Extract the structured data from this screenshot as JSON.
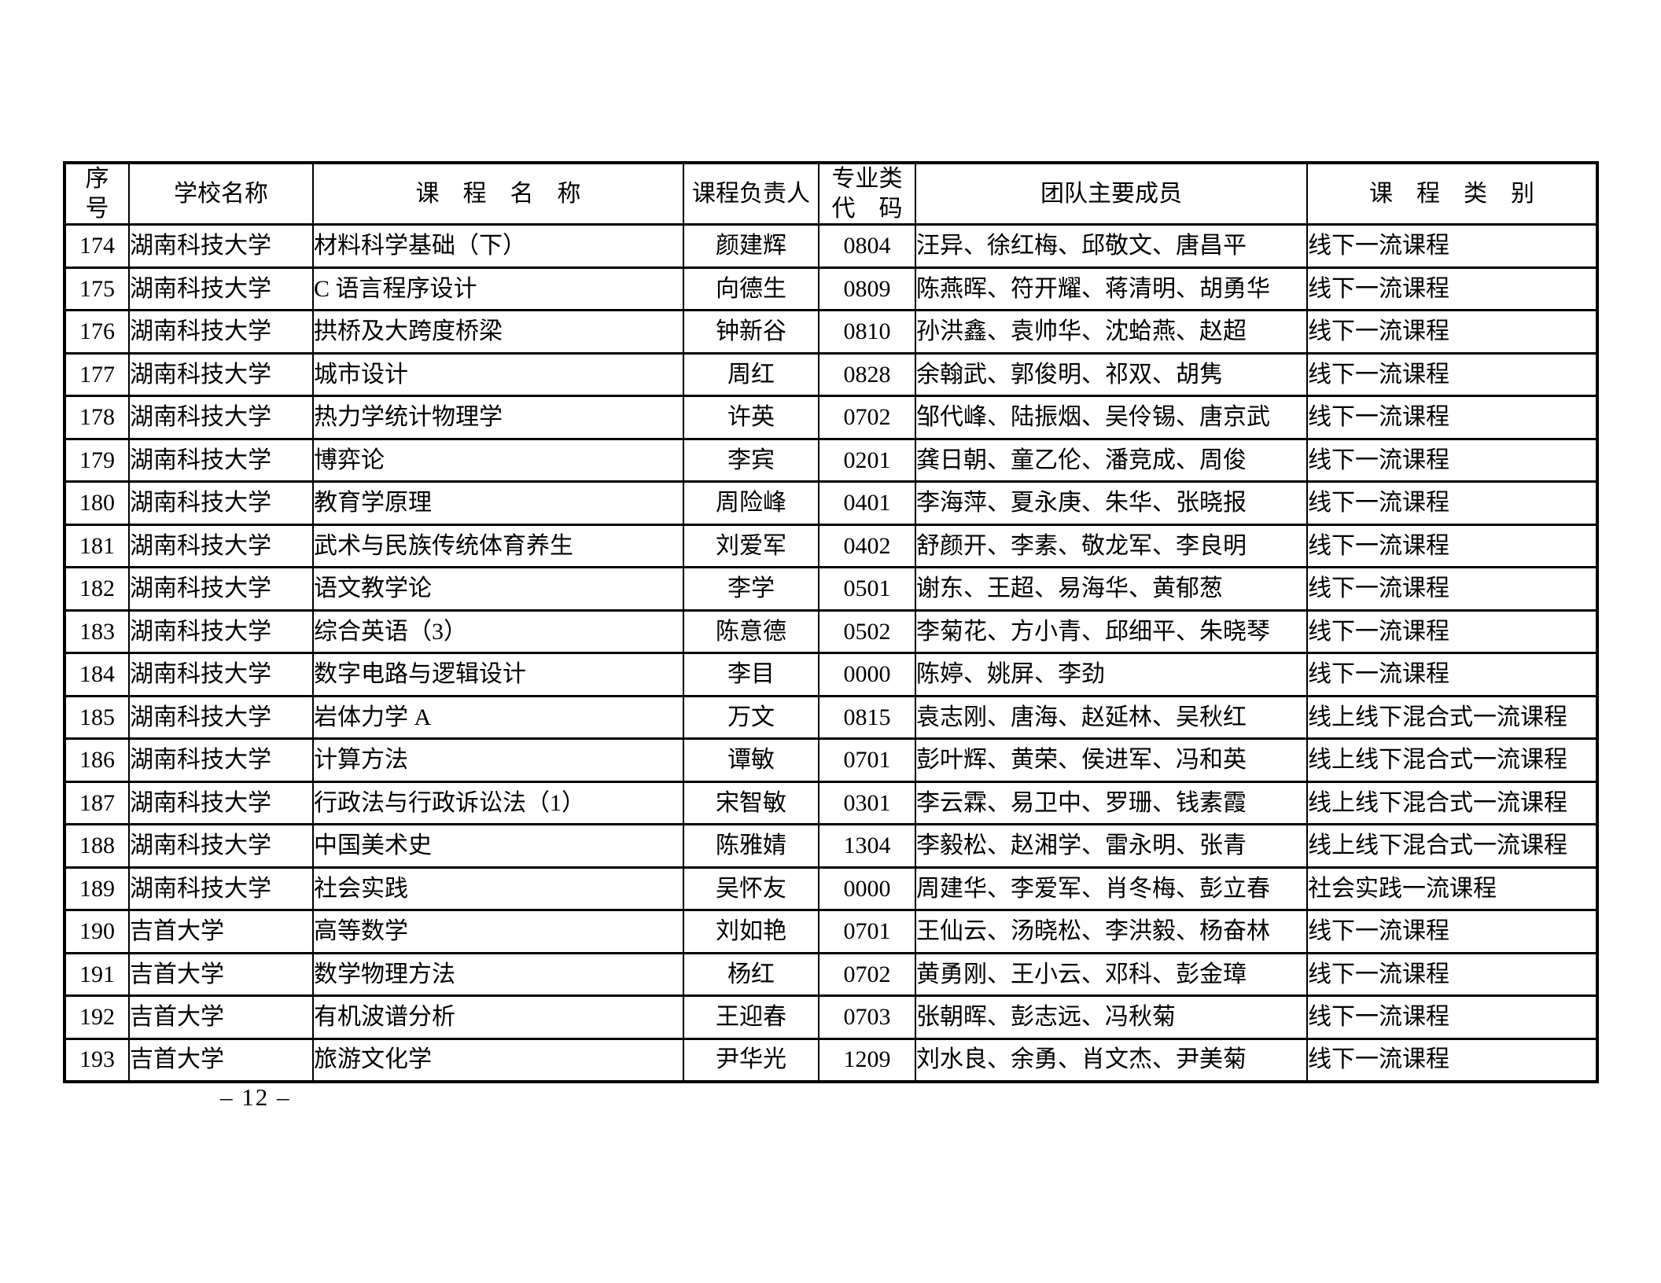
{
  "page": {
    "page_number": "– 12 –"
  },
  "table": {
    "headers": [
      "序\n号",
      "学校名称",
      "课　程　名　称",
      "课程负责人",
      "专业类\n代　码",
      "团队主要成员",
      "课　程　类　别"
    ],
    "rows": [
      {
        "no": "174",
        "school": "湖南科技大学",
        "course": "材料科学基础（下）",
        "leader": "颜建辉",
        "code": "0804",
        "members": "汪异、徐红梅、邱敬文、唐昌平",
        "category": "线下一流课程"
      },
      {
        "no": "175",
        "school": "湖南科技大学",
        "course": "C 语言程序设计",
        "leader": "向德生",
        "code": "0809",
        "members": "陈燕晖、符开耀、蒋清明、胡勇华",
        "category": "线下一流课程"
      },
      {
        "no": "176",
        "school": "湖南科技大学",
        "course": "拱桥及大跨度桥梁",
        "leader": "钟新谷",
        "code": "0810",
        "members": "孙洪鑫、袁帅华、沈蛤燕、赵超",
        "category": "线下一流课程"
      },
      {
        "no": "177",
        "school": "湖南科技大学",
        "course": "城市设计",
        "leader": "周红",
        "code": "0828",
        "members": "余翰武、郭俊明、祁双、胡隽",
        "category": "线下一流课程"
      },
      {
        "no": "178",
        "school": "湖南科技大学",
        "course": "热力学统计物理学",
        "leader": "许英",
        "code": "0702",
        "members": "邹代峰、陆振烟、吴伶锡、唐京武",
        "category": "线下一流课程"
      },
      {
        "no": "179",
        "school": "湖南科技大学",
        "course": "博弈论",
        "leader": "李宾",
        "code": "0201",
        "members": "龚日朝、童乙伦、潘竞成、周俊",
        "category": "线下一流课程"
      },
      {
        "no": "180",
        "school": "湖南科技大学",
        "course": "教育学原理",
        "leader": "周险峰",
        "code": "0401",
        "members": "李海萍、夏永庚、朱华、张晓报",
        "category": "线下一流课程"
      },
      {
        "no": "181",
        "school": "湖南科技大学",
        "course": "武术与民族传统体育养生",
        "leader": "刘爱军",
        "code": "0402",
        "members": "舒颜开、李素、敬龙军、李良明",
        "category": "线下一流课程"
      },
      {
        "no": "182",
        "school": "湖南科技大学",
        "course": "语文教学论",
        "leader": "李学",
        "code": "0501",
        "members": "谢东、王超、易海华、黄郁葱",
        "category": "线下一流课程"
      },
      {
        "no": "183",
        "school": "湖南科技大学",
        "course": "综合英语（3）",
        "leader": "陈意德",
        "code": "0502",
        "members": "李菊花、方小青、邱细平、朱晓琴",
        "category": "线下一流课程"
      },
      {
        "no": "184",
        "school": "湖南科技大学",
        "course": "数字电路与逻辑设计",
        "leader": "李目",
        "code": "0000",
        "members": "陈婷、姚屏、李劲",
        "category": "线下一流课程"
      },
      {
        "no": "185",
        "school": "湖南科技大学",
        "course": "岩体力学 A",
        "leader": "万文",
        "code": "0815",
        "members": "袁志刚、唐海、赵延林、吴秋红",
        "category": "线上线下混合式一流课程"
      },
      {
        "no": "186",
        "school": "湖南科技大学",
        "course": "计算方法",
        "leader": "谭敏",
        "code": "0701",
        "members": "彭叶辉、黄荣、侯进军、冯和英",
        "category": "线上线下混合式一流课程"
      },
      {
        "no": "187",
        "school": "湖南科技大学",
        "course": "行政法与行政诉讼法（1）",
        "leader": "宋智敏",
        "code": "0301",
        "members": "李云霖、易卫中、罗珊、钱素霞",
        "category": "线上线下混合式一流课程"
      },
      {
        "no": "188",
        "school": "湖南科技大学",
        "course": "中国美术史",
        "leader": "陈雅婧",
        "code": "1304",
        "members": "李毅松、赵湘学、雷永明、张青",
        "category": "线上线下混合式一流课程"
      },
      {
        "no": "189",
        "school": "湖南科技大学",
        "course": "社会实践",
        "leader": "吴怀友",
        "code": "0000",
        "members": "周建华、李爱军、肖冬梅、彭立春",
        "category": "社会实践一流课程"
      },
      {
        "no": "190",
        "school": "吉首大学",
        "course": "高等数学",
        "leader": "刘如艳",
        "code": "0701",
        "members": "王仙云、汤晓松、李洪毅、杨奋林",
        "category": "线下一流课程"
      },
      {
        "no": "191",
        "school": "吉首大学",
        "course": "数学物理方法",
        "leader": "杨红",
        "code": "0702",
        "members": "黄勇刚、王小云、邓科、彭金璋",
        "category": "线下一流课程"
      },
      {
        "no": "192",
        "school": "吉首大学",
        "course": "有机波谱分析",
        "leader": "王迎春",
        "code": "0703",
        "members": "张朝晖、彭志远、冯秋菊",
        "category": "线下一流课程"
      },
      {
        "no": "193",
        "school": "吉首大学",
        "course": "旅游文化学",
        "leader": "尹华光",
        "code": "1209",
        "members": "刘水良、余勇、肖文杰、尹美菊",
        "category": "线下一流课程"
      }
    ]
  }
}
